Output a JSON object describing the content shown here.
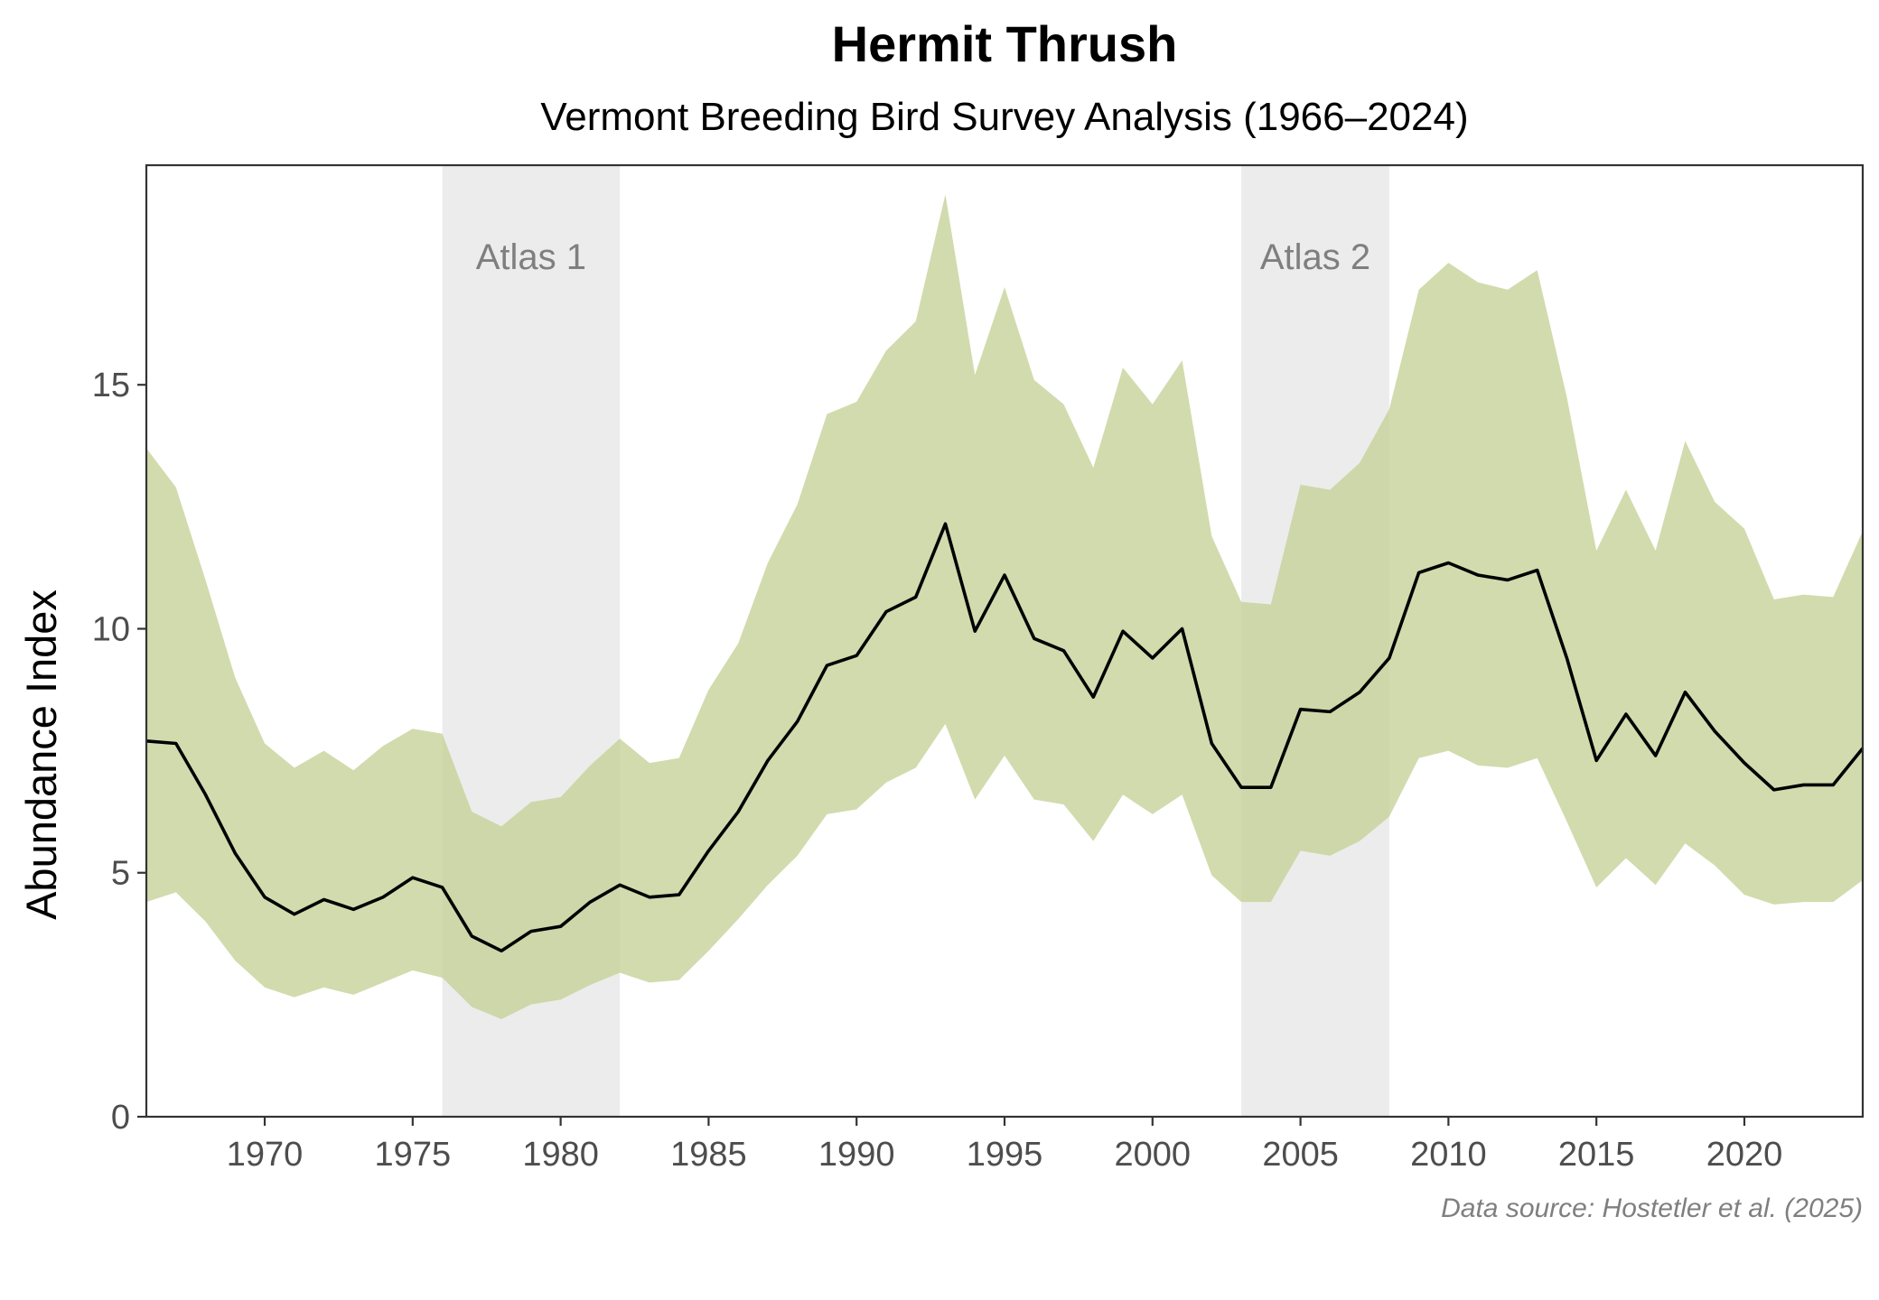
{
  "chart_data": {
    "type": "line",
    "title": "Hermit Thrush",
    "subtitle": "Vermont Breeding Bird Survey Analysis (1966–2024)",
    "xlabel": "",
    "ylabel": "Abundance Index",
    "caption": "Data source: Hostetler et al. (2025)",
    "xlim": [
      1966,
      2024
    ],
    "ylim": [
      0,
      19.5
    ],
    "x_ticks": [
      1970,
      1975,
      1980,
      1985,
      1990,
      1995,
      2000,
      2005,
      2010,
      2015,
      2020
    ],
    "y_ticks": [
      0,
      5,
      10,
      15
    ],
    "grid": false,
    "legend": "none",
    "colors": {
      "line": "#000000",
      "ribbon": "#c5d298",
      "band": "#e6e6e6",
      "frame": "#333333"
    },
    "bands": [
      {
        "label": "Atlas 1",
        "start": 1976,
        "end": 1982
      },
      {
        "label": "Atlas 2",
        "start": 2003,
        "end": 2008
      }
    ],
    "x": [
      1966,
      1967,
      1968,
      1969,
      1970,
      1971,
      1972,
      1973,
      1974,
      1975,
      1976,
      1977,
      1978,
      1979,
      1980,
      1981,
      1982,
      1983,
      1984,
      1985,
      1986,
      1987,
      1988,
      1989,
      1990,
      1991,
      1992,
      1993,
      1994,
      1995,
      1996,
      1997,
      1998,
      1999,
      2000,
      2001,
      2002,
      2003,
      2004,
      2005,
      2006,
      2007,
      2008,
      2009,
      2010,
      2011,
      2012,
      2013,
      2014,
      2015,
      2016,
      2017,
      2018,
      2019,
      2020,
      2021,
      2022,
      2023,
      2024
    ],
    "series": [
      {
        "role": "index",
        "values": [
          7.7,
          7.65,
          6.6,
          5.4,
          4.5,
          4.15,
          4.45,
          4.25,
          4.5,
          4.9,
          4.7,
          3.7,
          3.4,
          3.8,
          3.9,
          4.4,
          4.75,
          4.5,
          4.55,
          5.45,
          6.25,
          7.3,
          8.1,
          9.25,
          9.45,
          10.35,
          10.65,
          12.15,
          9.95,
          11.1,
          9.8,
          9.55,
          8.6,
          9.95,
          9.4,
          10.0,
          7.65,
          6.75,
          6.75,
          8.35,
          8.3,
          8.7,
          9.4,
          11.15,
          11.35,
          11.1,
          11.0,
          11.2,
          9.4,
          7.3,
          8.25,
          7.4,
          8.7,
          7.9,
          7.25,
          6.7,
          6.8,
          6.8,
          7.55
        ]
      },
      {
        "role": "upper",
        "values": [
          13.7,
          12.9,
          11.0,
          9.0,
          7.65,
          7.15,
          7.5,
          7.1,
          7.6,
          7.95,
          7.85,
          6.25,
          5.95,
          6.45,
          6.55,
          7.2,
          7.75,
          7.25,
          7.35,
          8.75,
          9.7,
          11.35,
          12.55,
          14.4,
          14.65,
          15.7,
          16.3,
          18.9,
          15.2,
          17.0,
          15.1,
          14.6,
          13.3,
          15.35,
          14.6,
          15.5,
          11.9,
          10.55,
          10.5,
          12.95,
          12.85,
          13.4,
          14.5,
          16.95,
          17.5,
          17.1,
          16.95,
          17.35,
          14.75,
          11.6,
          12.85,
          11.6,
          13.85,
          12.6,
          12.05,
          10.6,
          10.7,
          10.65,
          12.0
        ]
      },
      {
        "role": "lower",
        "values": [
          4.4,
          4.6,
          4.0,
          3.2,
          2.65,
          2.45,
          2.65,
          2.5,
          2.75,
          3.0,
          2.85,
          2.25,
          2.0,
          2.3,
          2.4,
          2.7,
          2.95,
          2.75,
          2.8,
          3.4,
          4.05,
          4.75,
          5.35,
          6.2,
          6.3,
          6.85,
          7.15,
          8.05,
          6.5,
          7.4,
          6.5,
          6.4,
          5.65,
          6.6,
          6.2,
          6.6,
          4.95,
          4.4,
          4.4,
          5.45,
          5.35,
          5.65,
          6.15,
          7.35,
          7.5,
          7.2,
          7.15,
          7.35,
          6.05,
          4.7,
          5.3,
          4.75,
          5.6,
          5.15,
          4.55,
          4.35,
          4.4,
          4.4,
          4.85
        ]
      }
    ]
  }
}
